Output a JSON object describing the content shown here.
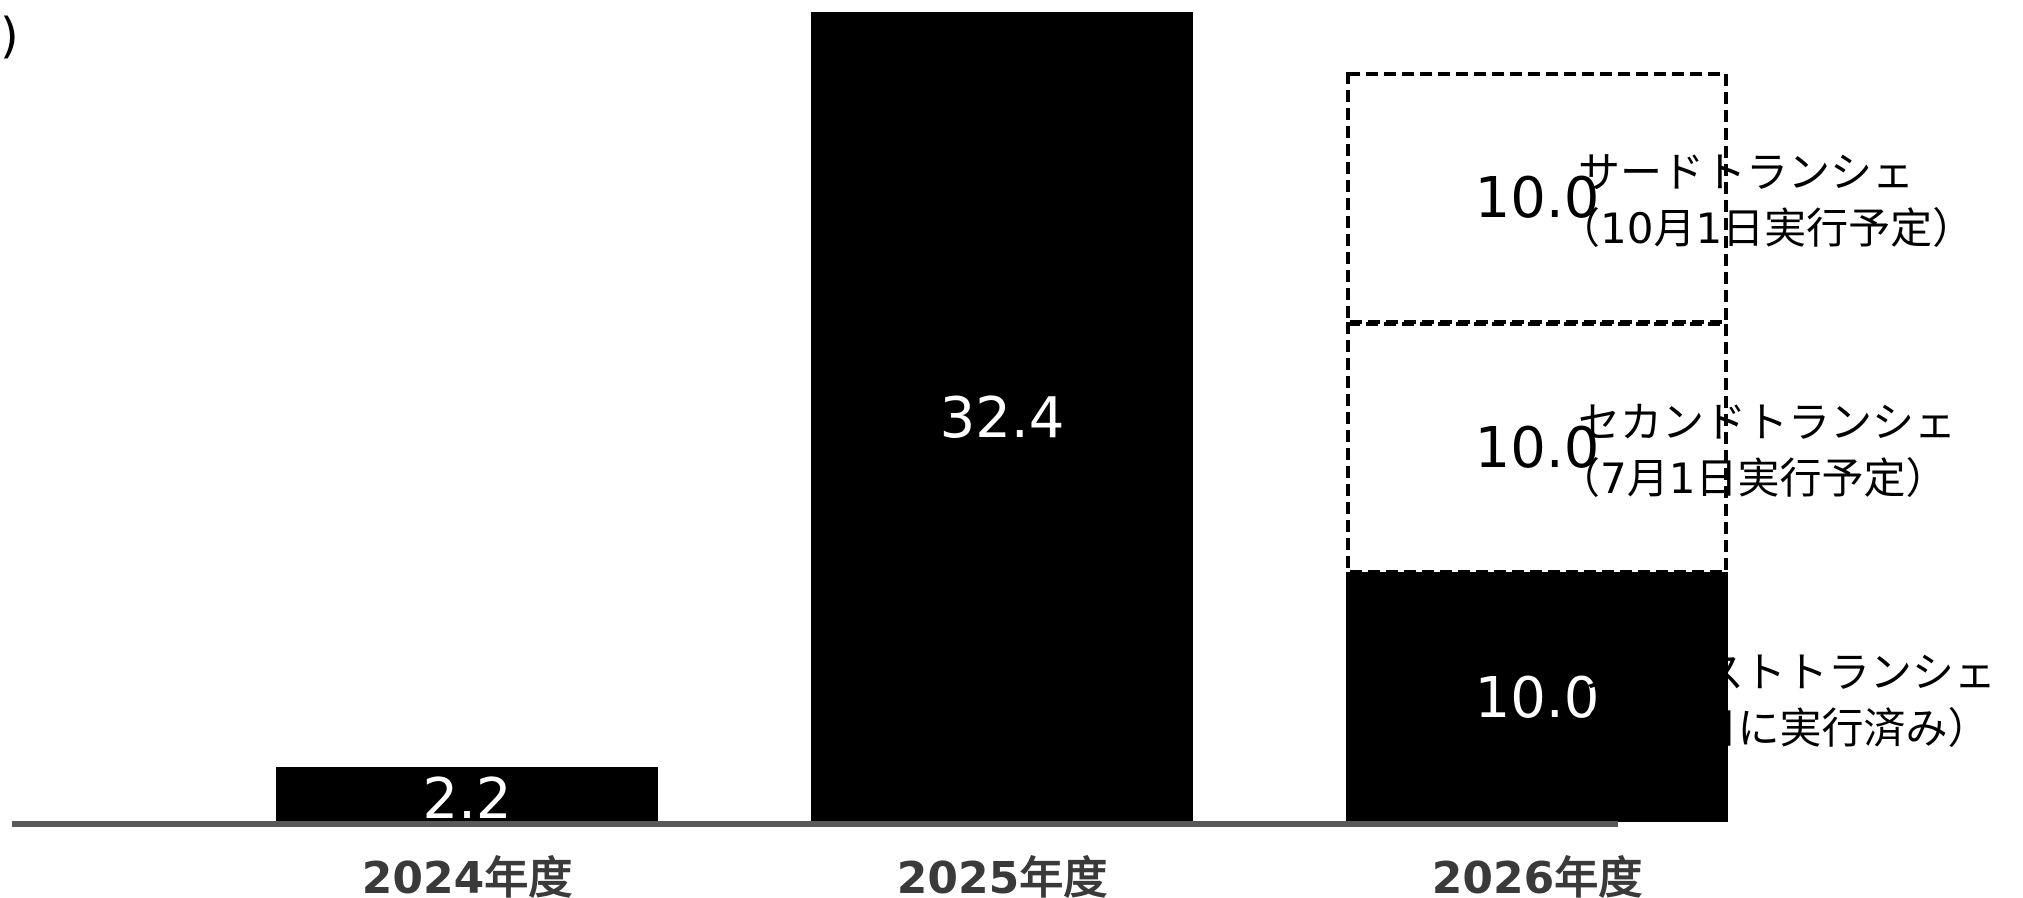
{
  "unit_fragment": ")",
  "colors": {
    "solid_fill": "#000000",
    "planned_fill": "#ffffff",
    "planned_stroke": "#000000",
    "baseline": "#595959",
    "value_text_on_solid": "#ffffff",
    "value_text_on_planned": "#000000",
    "category_text": "#3a3a3a"
  },
  "chart_data": {
    "type": "bar",
    "stacked": true,
    "categories": [
      "2024年度",
      "2025年度",
      "2026年度"
    ],
    "ylim": [
      0,
      32.4
    ],
    "grid": false,
    "legend": "none",
    "series": [
      {
        "style": "solid",
        "values": [
          2.2,
          32.4,
          10.0
        ],
        "labels": [
          "2.2",
          "32.4",
          "10.0"
        ]
      },
      {
        "style": "dashed",
        "values": [
          null,
          null,
          10.0
        ],
        "labels": [
          null,
          null,
          "10.0"
        ]
      },
      {
        "style": "dashed",
        "values": [
          null,
          null,
          10.0
        ],
        "labels": [
          null,
          null,
          "10.0"
        ]
      }
    ],
    "annotations": [
      {
        "line1": "ファーストトランシェ",
        "line2": "（4月1日に実行済み）"
      },
      {
        "line1": "セカンドトランシェ",
        "line2": "（7月1日実行予定）"
      },
      {
        "line1": "サードトランシェ",
        "line2": "（10月1日実行予定）"
      }
    ]
  }
}
